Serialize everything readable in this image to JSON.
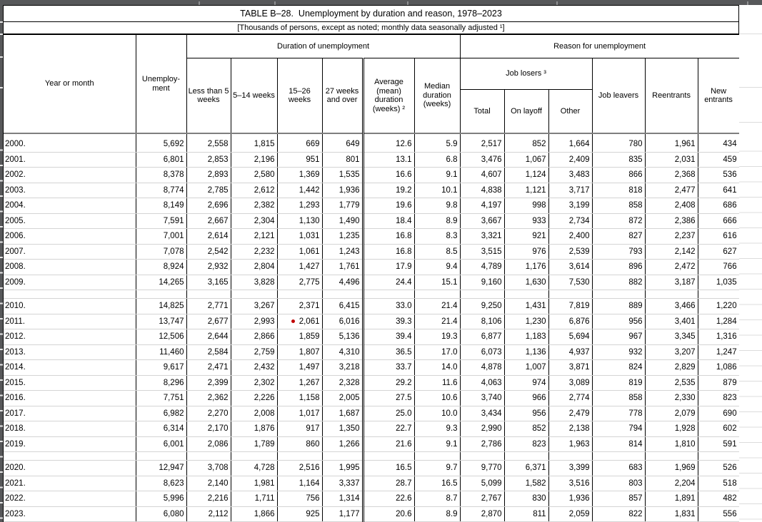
{
  "title": "TABLE B–28.  Unemployment by duration and reason, 1978–2023",
  "subtitle": "[Thousands of persons, except as noted; monthly data seasonally adjusted ¹]",
  "header": {
    "year_or_month": "Year or month",
    "unemployment": "Unemploy­ment",
    "duration_group": "Duration of unemployment",
    "reason_group": "Reason for unemployment",
    "less_than_5_weeks": "Less than 5 weeks",
    "weeks_5_14": "5–14 weeks",
    "weeks_15_26": "15–26 weeks",
    "weeks_27_over": "27 weeks and over",
    "average_duration": "Average (mean) duration (weeks) ²",
    "median_duration": "Median duration (weeks)",
    "job_losers_group": "Job losers ³",
    "job_losers_total": "Total",
    "on_layoff": "On layoff",
    "other": "Other",
    "job_leavers": "Job leavers",
    "reentrants": "Reentrants",
    "new_entrants": "New entrants"
  },
  "table": {
    "red_dot_marker": {
      "year": "2011.",
      "value_index": 3
    },
    "groups": [
      [
        {
          "year": "2000.",
          "values": [
            "5,692",
            "2,558",
            "1,815",
            "669",
            "649",
            "12.6",
            "5.9",
            "2,517",
            "852",
            "1,664",
            "780",
            "1,961",
            "434"
          ]
        },
        {
          "year": "2001.",
          "values": [
            "6,801",
            "2,853",
            "2,196",
            "951",
            "801",
            "13.1",
            "6.8",
            "3,476",
            "1,067",
            "2,409",
            "835",
            "2,031",
            "459"
          ]
        },
        {
          "year": "2002.",
          "values": [
            "8,378",
            "2,893",
            "2,580",
            "1,369",
            "1,535",
            "16.6",
            "9.1",
            "4,607",
            "1,124",
            "3,483",
            "866",
            "2,368",
            "536"
          ]
        },
        {
          "year": "2003.",
          "values": [
            "8,774",
            "2,785",
            "2,612",
            "1,442",
            "1,936",
            "19.2",
            "10.1",
            "4,838",
            "1,121",
            "3,717",
            "818",
            "2,477",
            "641"
          ]
        },
        {
          "year": "2004.",
          "values": [
            "8,149",
            "2,696",
            "2,382",
            "1,293",
            "1,779",
            "19.6",
            "9.8",
            "4,197",
            "998",
            "3,199",
            "858",
            "2,408",
            "686"
          ]
        },
        {
          "year": "2005.",
          "values": [
            "7,591",
            "2,667",
            "2,304",
            "1,130",
            "1,490",
            "18.4",
            "8.9",
            "3,667",
            "933",
            "2,734",
            "872",
            "2,386",
            "666"
          ]
        },
        {
          "year": "2006.",
          "values": [
            "7,001",
            "2,614",
            "2,121",
            "1,031",
            "1,235",
            "16.8",
            "8.3",
            "3,321",
            "921",
            "2,400",
            "827",
            "2,237",
            "616"
          ]
        },
        {
          "year": "2007.",
          "values": [
            "7,078",
            "2,542",
            "2,232",
            "1,061",
            "1,243",
            "16.8",
            "8.5",
            "3,515",
            "976",
            "2,539",
            "793",
            "2,142",
            "627"
          ]
        },
        {
          "year": "2008.",
          "values": [
            "8,924",
            "2,932",
            "2,804",
            "1,427",
            "1,761",
            "17.9",
            "9.4",
            "4,789",
            "1,176",
            "3,614",
            "896",
            "2,472",
            "766"
          ]
        },
        {
          "year": "2009.",
          "values": [
            "14,265",
            "3,165",
            "3,828",
            "2,775",
            "4,496",
            "24.4",
            "15.1",
            "9,160",
            "1,630",
            "7,530",
            "882",
            "3,187",
            "1,035"
          ]
        }
      ],
      [
        {
          "year": "2010.",
          "values": [
            "14,825",
            "2,771",
            "3,267",
            "2,371",
            "6,415",
            "33.0",
            "21.4",
            "9,250",
            "1,431",
            "7,819",
            "889",
            "3,466",
            "1,220"
          ]
        },
        {
          "year": "2011.",
          "values": [
            "13,747",
            "2,677",
            "2,993",
            "2,061",
            "6,016",
            "39.3",
            "21.4",
            "8,106",
            "1,230",
            "6,876",
            "956",
            "3,401",
            "1,284"
          ]
        },
        {
          "year": "2012.",
          "values": [
            "12,506",
            "2,644",
            "2,866",
            "1,859",
            "5,136",
            "39.4",
            "19.3",
            "6,877",
            "1,183",
            "5,694",
            "967",
            "3,345",
            "1,316"
          ]
        },
        {
          "year": "2013.",
          "values": [
            "11,460",
            "2,584",
            "2,759",
            "1,807",
            "4,310",
            "36.5",
            "17.0",
            "6,073",
            "1,136",
            "4,937",
            "932",
            "3,207",
            "1,247"
          ]
        },
        {
          "year": "2014.",
          "values": [
            "9,617",
            "2,471",
            "2,432",
            "1,497",
            "3,218",
            "33.7",
            "14.0",
            "4,878",
            "1,007",
            "3,871",
            "824",
            "2,829",
            "1,086"
          ]
        },
        {
          "year": "2015.",
          "values": [
            "8,296",
            "2,399",
            "2,302",
            "1,267",
            "2,328",
            "29.2",
            "11.6",
            "4,063",
            "974",
            "3,089",
            "819",
            "2,535",
            "879"
          ]
        },
        {
          "year": "2016.",
          "values": [
            "7,751",
            "2,362",
            "2,226",
            "1,158",
            "2,005",
            "27.5",
            "10.6",
            "3,740",
            "966",
            "2,774",
            "858",
            "2,330",
            "823"
          ]
        },
        {
          "year": "2017.",
          "values": [
            "6,982",
            "2,270",
            "2,008",
            "1,017",
            "1,687",
            "25.0",
            "10.0",
            "3,434",
            "956",
            "2,479",
            "778",
            "2,079",
            "690"
          ]
        },
        {
          "year": "2018.",
          "values": [
            "6,314",
            "2,170",
            "1,876",
            "917",
            "1,350",
            "22.7",
            "9.3",
            "2,990",
            "852",
            "2,138",
            "794",
            "1,928",
            "602"
          ]
        },
        {
          "year": "2019.",
          "values": [
            "6,001",
            "2,086",
            "1,789",
            "860",
            "1,266",
            "21.6",
            "9.1",
            "2,786",
            "823",
            "1,963",
            "814",
            "1,810",
            "591"
          ]
        }
      ],
      [
        {
          "year": "2020.",
          "values": [
            "12,947",
            "3,708",
            "4,728",
            "2,516",
            "1,995",
            "16.5",
            "9.7",
            "9,770",
            "6,371",
            "3,399",
            "683",
            "1,969",
            "526"
          ]
        },
        {
          "year": "2021.",
          "values": [
            "8,623",
            "2,140",
            "1,981",
            "1,164",
            "3,337",
            "28.7",
            "16.5",
            "5,099",
            "1,582",
            "3,516",
            "803",
            "2,204",
            "518"
          ]
        },
        {
          "year": "2022.",
          "values": [
            "5,996",
            "2,216",
            "1,711",
            "756",
            "1,314",
            "22.6",
            "8.7",
            "2,767",
            "830",
            "1,936",
            "857",
            "1,891",
            "482"
          ]
        },
        {
          "year": "2023.",
          "values": [
            "6,080",
            "2,112",
            "1,866",
            "925",
            "1,177",
            "20.6",
            "8.9",
            "2,870",
            "811",
            "2,059",
            "822",
            "1,831",
            "556"
          ]
        }
      ]
    ]
  },
  "colors": {
    "red_dot": "#c00000",
    "grid_line": "#d4d4d4",
    "chrome_bar": "#57585a",
    "header_separator": "#7f7f7f"
  }
}
